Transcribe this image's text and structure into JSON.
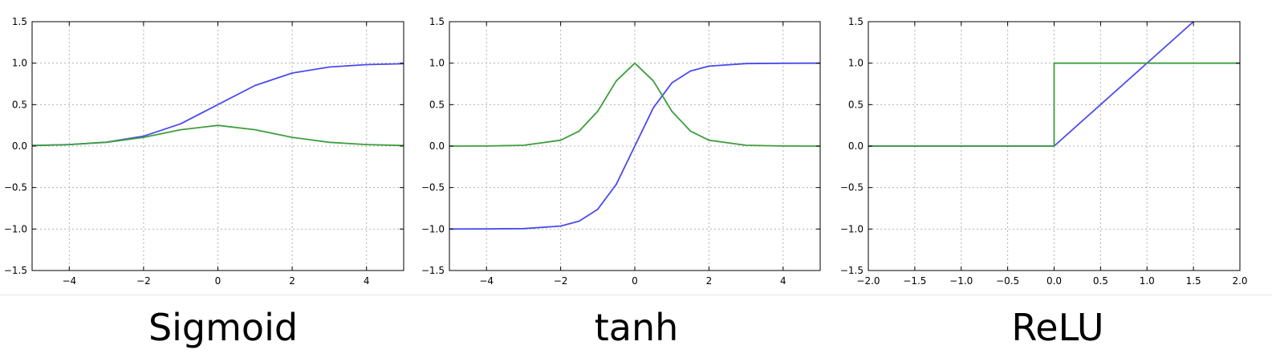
{
  "captions": [
    "Sigmoid",
    "tanh",
    "ReLU"
  ],
  "colors": {
    "function": "#4a4af0",
    "derivative": "#3d9e3d",
    "grid": "#b0b0b0",
    "axes": "#000000"
  },
  "chart_data": [
    {
      "type": "line",
      "title": "Sigmoid",
      "xlim": [
        -5,
        5
      ],
      "ylim": [
        -1.5,
        1.5
      ],
      "grid": true,
      "xticks": [
        "−4",
        "−2",
        "0",
        "2",
        "4"
      ],
      "yticks": [
        "1.5",
        "1.0",
        "0.5",
        "0.0",
        "−0.5",
        "−1.0",
        "−1.5"
      ],
      "series": [
        {
          "x": [
            -5,
            -4,
            -3,
            -2,
            -1,
            0,
            1,
            2,
            3,
            4,
            5
          ],
          "values": [
            0.007,
            0.018,
            0.047,
            0.119,
            0.269,
            0.5,
            0.731,
            0.881,
            0.953,
            0.982,
            0.993
          ]
        },
        {
          "x": [
            -5,
            -4,
            -3,
            -2,
            -1,
            0,
            1,
            2,
            3,
            4,
            5
          ],
          "values": [
            0.007,
            0.018,
            0.045,
            0.105,
            0.197,
            0.25,
            0.197,
            0.105,
            0.045,
            0.018,
            0.007
          ]
        }
      ]
    },
    {
      "type": "line",
      "title": "tanh",
      "xlim": [
        -5,
        5
      ],
      "ylim": [
        -1.5,
        1.5
      ],
      "grid": true,
      "xticks": [
        "−4",
        "−2",
        "0",
        "2",
        "4"
      ],
      "yticks": [
        "1.5",
        "1.0",
        "0.5",
        "0.0",
        "−0.5",
        "−1.0",
        "−1.5"
      ],
      "series": [
        {
          "x": [
            -5,
            -4,
            -3,
            -2,
            -1.5,
            -1,
            -0.5,
            0,
            0.5,
            1,
            1.5,
            2,
            3,
            4,
            5
          ],
          "values": [
            -1.0,
            -0.999,
            -0.995,
            -0.964,
            -0.905,
            -0.762,
            -0.462,
            0,
            0.462,
            0.762,
            0.905,
            0.964,
            0.995,
            0.999,
            1.0
          ]
        },
        {
          "x": [
            -5,
            -4,
            -3,
            -2,
            -1.5,
            -1,
            -0.5,
            0,
            0.5,
            1,
            1.5,
            2,
            3,
            4,
            5
          ],
          "values": [
            0.0,
            0.001,
            0.01,
            0.071,
            0.181,
            0.42,
            0.786,
            1.0,
            0.786,
            0.42,
            0.181,
            0.071,
            0.01,
            0.001,
            0.0
          ]
        }
      ]
    },
    {
      "type": "line",
      "title": "ReLU",
      "xlim": [
        -2,
        2
      ],
      "ylim": [
        -1.5,
        1.5
      ],
      "grid": true,
      "xticks": [
        "−2.0",
        "−1.5",
        "−1.0",
        "−0.5",
        "0.0",
        "0.5",
        "1.0",
        "1.5",
        "2.0"
      ],
      "yticks": [
        "1.5",
        "1.0",
        "0.5",
        "0.0",
        "−0.5",
        "−1.0",
        "−1.5"
      ],
      "series": [
        {
          "x": [
            -2,
            0,
            1.5
          ],
          "values": [
            0,
            0,
            1.5
          ]
        },
        {
          "x": [
            -2,
            0,
            0,
            2
          ],
          "values": [
            0,
            0,
            1,
            1
          ]
        }
      ]
    }
  ]
}
